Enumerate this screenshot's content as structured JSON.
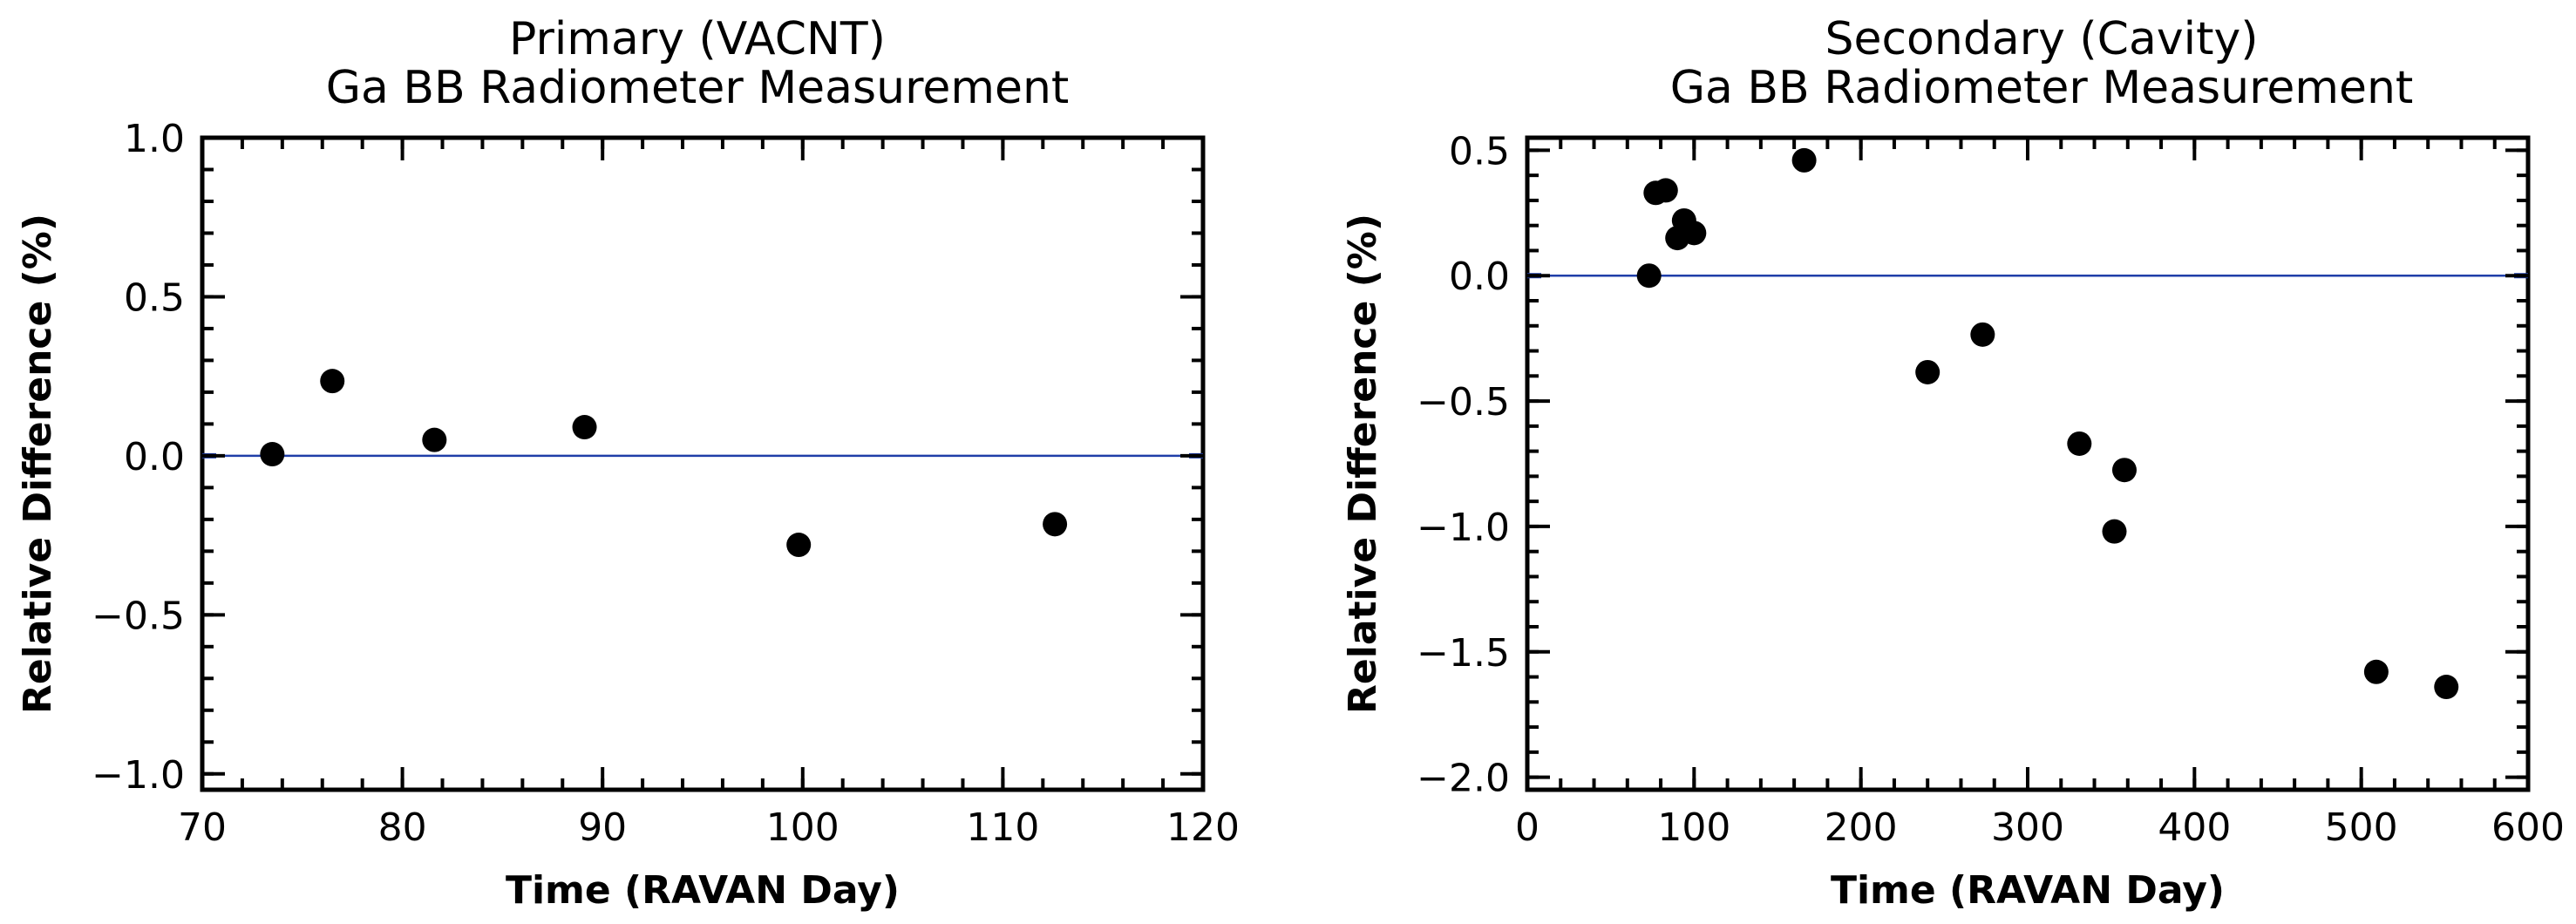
{
  "chart_data": [
    {
      "type": "scatter",
      "title": [
        "Primary (VACNT)",
        "Ga BB Radiometer Measurement"
      ],
      "xlabel": "Time (RAVAN Day)",
      "ylabel": "Relative Difference (%)",
      "xlim": [
        70,
        120
      ],
      "ylim": [
        -1.05,
        1.0
      ],
      "xticks": [
        70,
        80,
        90,
        100,
        110,
        120
      ],
      "xtick_labels": [
        "70",
        "80",
        "90",
        "100",
        "110",
        "120"
      ],
      "yticks": [
        -1.0,
        -0.5,
        0.0,
        0.5,
        1.0
      ],
      "ytick_labels": [
        "−1.0",
        "−0.5",
        "0.0",
        "0.5",
        "1.0"
      ],
      "x_minor_step": 2,
      "y_minor_step": 0.1,
      "reference_line": {
        "y": 0.0,
        "color": "#1f3ea8"
      },
      "marker_color": "#000000",
      "series": [
        {
          "name": "Primary (VACNT)",
          "x": [
            73.5,
            76.5,
            81.6,
            89.1,
            99.8,
            112.6
          ],
          "y": [
            0.005,
            0.235,
            0.05,
            0.09,
            -0.28,
            -0.215
          ]
        }
      ]
    },
    {
      "type": "scatter",
      "title": [
        "Secondary (Cavity)",
        "Ga BB Radiometer Measurement"
      ],
      "xlabel": "Time (RAVAN Day)",
      "ylabel": "Relative Difference (%)",
      "xlim": [
        0,
        600
      ],
      "ylim": [
        -2.05,
        0.55
      ],
      "xticks": [
        0,
        100,
        200,
        300,
        400,
        500,
        600
      ],
      "xtick_labels": [
        "0",
        "100",
        "200",
        "300",
        "400",
        "500",
        "600"
      ],
      "yticks": [
        -2.0,
        -1.5,
        -1.0,
        -0.5,
        0.0,
        0.5
      ],
      "ytick_labels": [
        "−2.0",
        "−1.5",
        "−1.0",
        "−0.5",
        "0.0",
        "0.5"
      ],
      "x_minor_step": 20,
      "y_minor_step": 0.1,
      "reference_line": {
        "y": 0.0,
        "color": "#1f3ea8"
      },
      "marker_color": "#000000",
      "series": [
        {
          "name": "Secondary (Cavity)",
          "x": [
            73,
            77,
            83,
            90,
            94,
            100,
            166,
            240,
            273,
            331,
            352,
            358,
            509,
            551
          ],
          "y": [
            0.0,
            0.33,
            0.34,
            0.15,
            0.22,
            0.17,
            0.46,
            -0.385,
            -0.235,
            -0.67,
            -1.02,
            -0.775,
            -1.58,
            -1.64
          ]
        }
      ]
    }
  ]
}
